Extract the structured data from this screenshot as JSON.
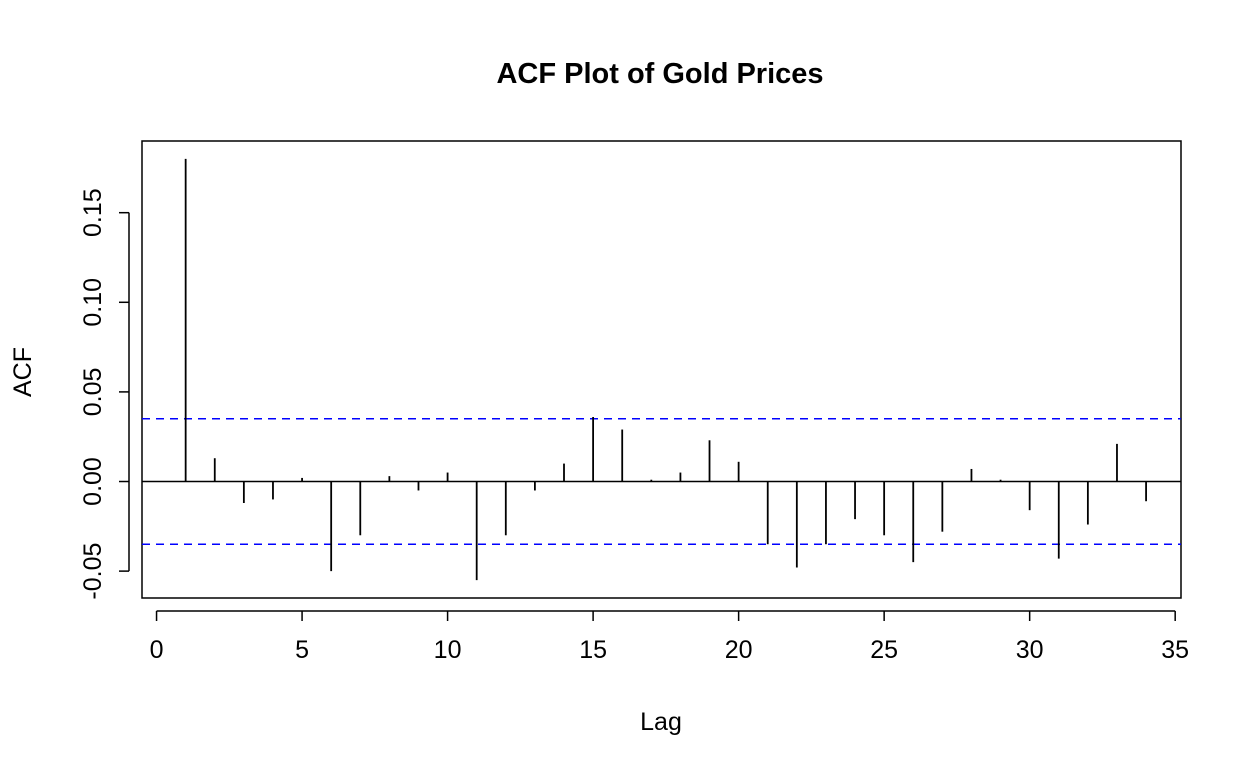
{
  "chart_data": {
    "type": "bar",
    "subtype": "acf-spike",
    "title": "ACF Plot of Gold Prices",
    "xlabel": "Lag",
    "ylabel": "ACF",
    "xlim": [
      -0.5,
      35.2
    ],
    "ylim": [
      -0.065,
      0.19
    ],
    "x_ticks": [
      0,
      5,
      10,
      15,
      20,
      25,
      30,
      35
    ],
    "y_ticks": [
      -0.05,
      0.0,
      0.05,
      0.1,
      0.15
    ],
    "y_tick_labels": [
      "-0.05",
      "0.00",
      "0.05",
      "0.10",
      "0.15"
    ],
    "x": [
      1,
      2,
      3,
      4,
      5,
      6,
      7,
      8,
      9,
      10,
      11,
      12,
      13,
      14,
      15,
      16,
      17,
      18,
      19,
      20,
      21,
      22,
      23,
      24,
      25,
      26,
      27,
      28,
      29,
      30,
      31,
      32,
      33,
      34
    ],
    "values": [
      0.18,
      0.013,
      -0.012,
      -0.01,
      0.002,
      -0.05,
      -0.03,
      0.003,
      -0.005,
      0.005,
      -0.055,
      -0.03,
      -0.005,
      0.01,
      0.036,
      0.029,
      0.001,
      0.005,
      0.023,
      0.011,
      -0.035,
      -0.048,
      -0.035,
      -0.021,
      -0.03,
      -0.045,
      -0.028,
      0.007,
      0.001,
      -0.016,
      -0.043,
      -0.024,
      0.021,
      -0.011
    ],
    "confidence_bound": 0.035,
    "colors": {
      "spike": "#000000",
      "bound": "#0000ff",
      "zero_line": "#000000"
    },
    "grid": false,
    "legend": "none"
  }
}
